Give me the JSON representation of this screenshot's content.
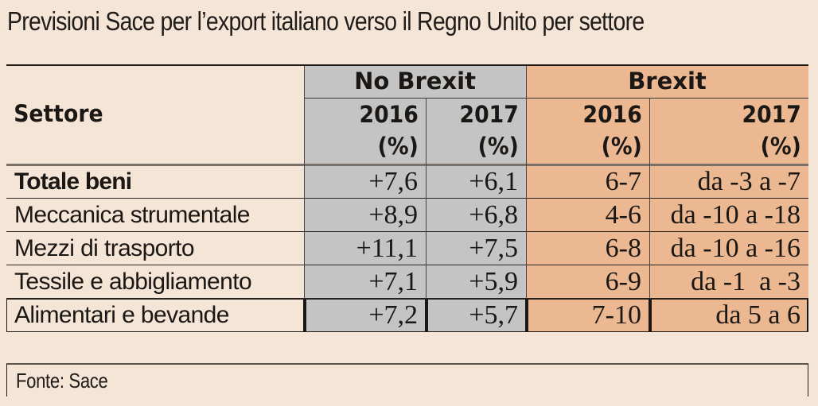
{
  "title": "Previsioni Sace per l’export italiano verso il Regno Unito per settore",
  "source": "Fonte: Sace",
  "colors": {
    "background": "#f5e5d6",
    "no_brexit_fill": "#c3c4c3",
    "brexit_fill": "#ebb891",
    "text": "#1a1714"
  },
  "chart_data": {
    "type": "table",
    "title": "Previsioni Sace per l’export italiano verso il Regno Unito per settore",
    "row_header": "Settore",
    "column_groups": [
      {
        "name": "No Brexit",
        "columns": [
          {
            "year": "2016",
            "unit": "(%)"
          },
          {
            "year": "2017",
            "unit": "(%)"
          }
        ]
      },
      {
        "name": "Brexit",
        "columns": [
          {
            "year": "2016",
            "unit": "(%)"
          },
          {
            "year": "2017",
            "unit": "(%)"
          }
        ]
      }
    ],
    "rows": [
      {
        "sector": "Totale beni",
        "bold": true,
        "no_brexit_2016": "+7,6",
        "no_brexit_2017": "+6,1",
        "brexit_2016": "6-7",
        "brexit_2017": "da -3 a -7"
      },
      {
        "sector": "Meccanica strumentale",
        "bold": false,
        "no_brexit_2016": "+8,9",
        "no_brexit_2017": "+6,8",
        "brexit_2016": "4-6",
        "brexit_2017": "da -10 a -18"
      },
      {
        "sector": "Mezzi di trasporto",
        "bold": false,
        "no_brexit_2016": "+11,1",
        "no_brexit_2017": "+7,5",
        "brexit_2016": "6-8",
        "brexit_2017": "da -10 a -16"
      },
      {
        "sector": "Tessile e abbigliamento",
        "bold": false,
        "no_brexit_2016": "+7,1",
        "no_brexit_2017": "+5,9",
        "brexit_2016": "6-9",
        "brexit_2017": "da -1  a -3"
      },
      {
        "sector": "Alimentari e bevande",
        "bold": false,
        "highlighted": true,
        "no_brexit_2016": "+7,2",
        "no_brexit_2017": "+5,7",
        "brexit_2016": "7-10",
        "brexit_2017": "da 5 a 6"
      }
    ],
    "source": "Fonte: Sace"
  }
}
